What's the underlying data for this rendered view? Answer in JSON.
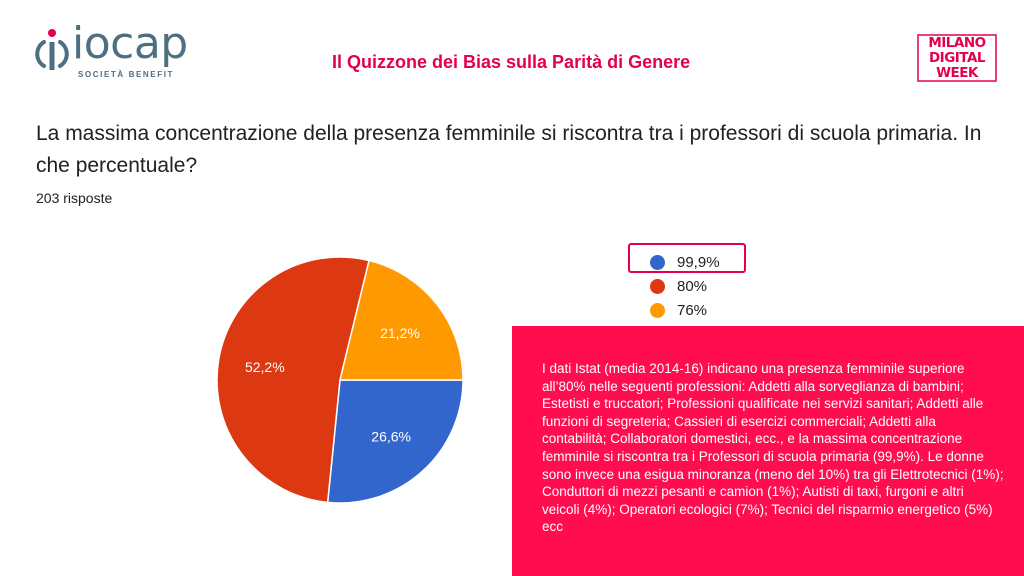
{
  "header": {
    "logo_left": {
      "name": "iocap",
      "sub": "SOCIETÀ BENEFIT"
    },
    "title": "Il Quizzone dei Bias sulla Parità di Genere",
    "logo_right": {
      "lines": [
        "MILANO",
        "DIGITAL",
        "WEEK"
      ]
    }
  },
  "question": {
    "text": "La massima concentrazione della presenza femminile si riscontra tra i professori di scuola primaria. In che percentuale?",
    "responses": "203 risposte"
  },
  "chart_data": {
    "type": "pie",
    "slices": [
      {
        "label": "99,9%",
        "value": 26.6,
        "display": "26,6%",
        "color": "#3366cc"
      },
      {
        "label": "80%",
        "value": 52.2,
        "display": "52,2%",
        "color": "#dc3912"
      },
      {
        "label": "76%",
        "value": 21.2,
        "display": "21,2%",
        "color": "#ff9900"
      }
    ],
    "legend_position": "right",
    "highlighted": "99,9%"
  },
  "info": {
    "text": "I dati Istat (media 2014-16) indicano una presenza femminile superiore all’80% nelle seguenti professioni: Addetti alla sorveglianza di bambini; Estetisti e truccatori; Professioni qualificate nei servizi sanitari; Addetti alle funzioni di segreteria; Cassieri di esercizi commerciali; Addetti alla contabilità; Collaboratori domestici, ecc., e la massima concentrazione femminile si riscontra tra i Professori di scuola primaria (99,9%). Le donne sono invece una esigua minoranza (meno del 10%) tra gli Elettrotecnici (1%); Conduttori di mezzi pesanti e camion (1%); Autisti di taxi, furgoni e altri veicoli (4%); Operatori ecologici (7%); Tecnici del risparmio energetico (5%) ecc"
  },
  "colors": {
    "accent": "#e4004b",
    "info_bg": "#ff0d4f",
    "logo": "#4d6f80"
  }
}
